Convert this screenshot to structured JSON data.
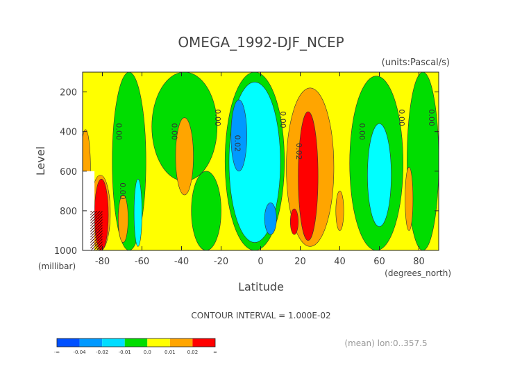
{
  "chart_data": {
    "type": "heatmap",
    "title": "OMEGA_1992-DJF_NCEP",
    "units": "(units:Pascal/s)",
    "xlabel": "Latitude",
    "ylabel": "Level",
    "x_unit_label": "(degrees_north)",
    "y_unit_label": "(millibar)",
    "xlim": [
      -90,
      90
    ],
    "ylim": [
      1000,
      100
    ],
    "x_ticks": [
      -80,
      -60,
      -40,
      -20,
      0,
      20,
      40,
      60,
      80
    ],
    "x_tick_labels": [
      "-80",
      "-60",
      "-40",
      "-20",
      "0",
      "20",
      "40",
      "60",
      "80"
    ],
    "y_ticks": [
      200,
      400,
      600,
      800,
      1000
    ],
    "y_tick_labels": [
      "200",
      "400",
      "600",
      "800",
      "1000"
    ],
    "contour_interval_text": "CONTOUR INTERVAL = 1.000E-02",
    "mean_text": "(mean) lon:0..357.5",
    "background_color": "#ffff00",
    "regions": [
      {
        "color": "#00dd00",
        "x": [
          -75,
          -58
        ],
        "y": [
          100,
          1000
        ],
        "level": "-0.01"
      },
      {
        "color": "#00dd00",
        "x": [
          -55,
          -22
        ],
        "y": [
          100,
          650
        ],
        "level": "-0.01"
      },
      {
        "color": "#00dd00",
        "x": [
          -35,
          -20
        ],
        "y": [
          600,
          1000
        ],
        "level": "-0.01"
      },
      {
        "color": "#00dd00",
        "x": [
          -18,
          12
        ],
        "y": [
          100,
          1000
        ],
        "level": "-0.01"
      },
      {
        "color": "#00dd00",
        "x": [
          45,
          72
        ],
        "y": [
          120,
          1000
        ],
        "level": "-0.01"
      },
      {
        "color": "#00dd00",
        "x": [
          74,
          90
        ],
        "y": [
          100,
          1000
        ],
        "level": "-0.01"
      },
      {
        "color": "#00ffff",
        "x": [
          -16,
          10
        ],
        "y": [
          150,
          960
        ],
        "level": "-0.02"
      },
      {
        "color": "#00ffff",
        "x": [
          -64,
          -60
        ],
        "y": [
          640,
          980
        ],
        "level": "-0.02"
      },
      {
        "color": "#00ffff",
        "x": [
          54,
          66
        ],
        "y": [
          360,
          880
        ],
        "level": "-0.02"
      },
      {
        "color": "#0099ff",
        "x": [
          -15,
          -7
        ],
        "y": [
          240,
          600
        ],
        "level": "-0.04"
      },
      {
        "color": "#0099ff",
        "x": [
          2,
          8
        ],
        "y": [
          760,
          920
        ],
        "level": "-0.04"
      },
      {
        "color": "#ffa500",
        "x": [
          13,
          37
        ],
        "y": [
          180,
          980
        ],
        "level": "0.02"
      },
      {
        "color": "#ffa500",
        "x": [
          -43,
          -34
        ],
        "y": [
          330,
          720
        ],
        "level": "0.02"
      },
      {
        "color": "#ffa500",
        "x": [
          -91,
          -86
        ],
        "y": [
          390,
          800
        ],
        "level": "0.02"
      },
      {
        "color": "#ffa500",
        "x": [
          -86,
          -76
        ],
        "y": [
          620,
          1000
        ],
        "level": "0.02"
      },
      {
        "color": "#ffa500",
        "x": [
          -72,
          -67
        ],
        "y": [
          720,
          960
        ],
        "level": "0.02"
      },
      {
        "color": "#ffa500",
        "x": [
          38,
          42
        ],
        "y": [
          700,
          900
        ],
        "level": "0.02"
      },
      {
        "color": "#ffa500",
        "x": [
          73,
          77
        ],
        "y": [
          580,
          900
        ],
        "level": "0.02"
      },
      {
        "color": "#ff0000",
        "x": [
          19,
          29
        ],
        "y": [
          300,
          950
        ],
        "level": "0.03"
      },
      {
        "color": "#ff0000",
        "x": [
          15,
          19
        ],
        "y": [
          790,
          920
        ],
        "level": "0.03"
      },
      {
        "color": "#ff0000",
        "x": [
          -84,
          -77
        ],
        "y": [
          640,
          1000
        ],
        "level": "0.03"
      }
    ],
    "white_region": {
      "x": [
        -90,
        -84
      ],
      "y": [
        600,
        1000
      ]
    },
    "contour_labels": [
      {
        "text": "0.00",
        "lat": -73,
        "p": 400
      },
      {
        "text": "0.00",
        "lat": -45,
        "p": 400
      },
      {
        "text": "0.00",
        "lat": -23,
        "p": 330
      },
      {
        "text": "0.02",
        "lat": -13,
        "p": 460
      },
      {
        "text": "0.00",
        "lat": 10,
        "p": 340
      },
      {
        "text": "0.02",
        "lat": 18,
        "p": 500
      },
      {
        "text": "0.00",
        "lat": 50,
        "p": 400
      },
      {
        "text": "0.00",
        "lat": 70,
        "p": 330
      },
      {
        "text": "0.00",
        "lat": 85,
        "p": 330
      },
      {
        "text": "0.00",
        "lat": -71,
        "p": 700
      }
    ],
    "colorbar": {
      "colors": [
        "#0050ff",
        "#0099ff",
        "#00ddff",
        "#00dd00",
        "#ffff00",
        "#ffa500",
        "#ff0000"
      ],
      "labels": [
        "-∞",
        "-0.04",
        "-0.02",
        "-0.01",
        "0.0",
        "0.01",
        "0.02",
        "∞"
      ]
    }
  }
}
